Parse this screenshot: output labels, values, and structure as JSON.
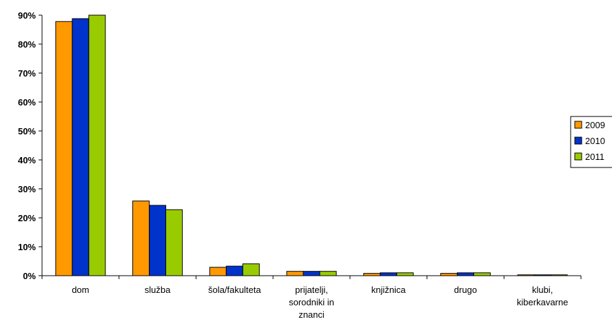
{
  "chart_data": {
    "type": "bar",
    "categories": [
      [
        "dom"
      ],
      [
        "služba"
      ],
      [
        "šola/fakulteta"
      ],
      [
        "prijatelji,",
        "sorodniki in",
        "znanci"
      ],
      [
        "knjižnica"
      ],
      [
        "drugo"
      ],
      [
        "klubi,",
        "kiberkavarne"
      ]
    ],
    "series": [
      {
        "name": "2009",
        "color": "#FF9900",
        "values": [
          87.8,
          25.8,
          2.9,
          1.5,
          0.8,
          0.8,
          0.3
        ]
      },
      {
        "name": "2010",
        "color": "#0033CC",
        "values": [
          88.8,
          24.3,
          3.3,
          1.5,
          1.0,
          1.0,
          0.3
        ]
      },
      {
        "name": "2011",
        "color": "#99CC00",
        "values": [
          90.0,
          22.8,
          4.1,
          1.5,
          1.0,
          1.0,
          0.3
        ]
      }
    ],
    "yticks": [
      "0%",
      "10%",
      "20%",
      "30%",
      "40%",
      "50%",
      "60%",
      "70%",
      "80%",
      "90%"
    ],
    "ylim": [
      0,
      90
    ],
    "grid": false,
    "legend_position": "right"
  }
}
